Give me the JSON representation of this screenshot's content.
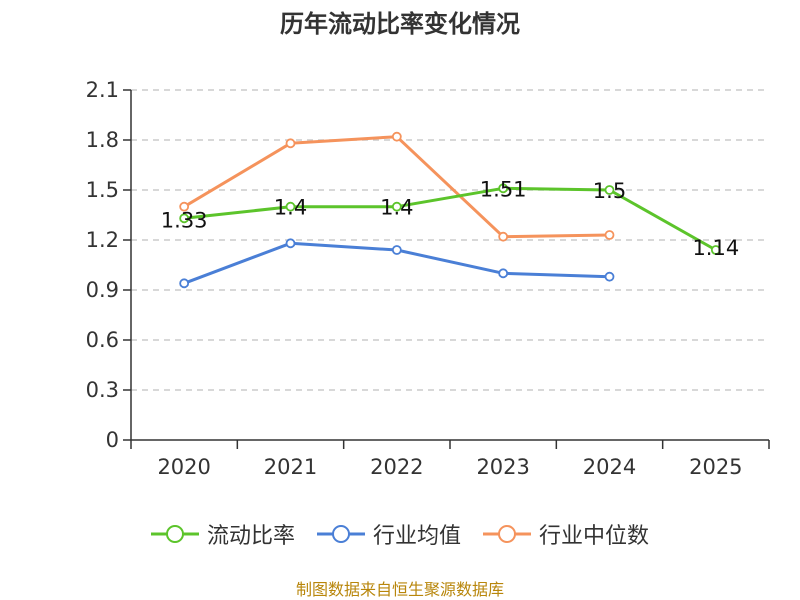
{
  "chart_data": {
    "type": "line",
    "title": "历年流动比率变化情况",
    "categories": [
      "2020",
      "2021",
      "2022",
      "2023",
      "2024",
      "2025"
    ],
    "ylim": [
      0,
      2.1
    ],
    "yticks": [
      "0",
      "0.3",
      "0.6",
      "0.9",
      "1.2",
      "1.5",
      "1.8",
      "2.1"
    ],
    "grid": true,
    "legend_position": "bottom",
    "series": [
      {
        "name": "流动比率",
        "color": "#5cc42b",
        "values": [
          1.33,
          1.4,
          1.4,
          1.51,
          1.5,
          1.14
        ],
        "labels": [
          "1.33",
          "1.4",
          "1.4",
          "1.51",
          "1.5",
          "1.14"
        ]
      },
      {
        "name": "行业均值",
        "color": "#4a7fd6",
        "values": [
          0.94,
          1.18,
          1.14,
          1.0,
          0.98,
          null
        ]
      },
      {
        "name": "行业中位数",
        "color": "#f5935c",
        "values": [
          1.4,
          1.78,
          1.82,
          1.22,
          1.23,
          null
        ]
      }
    ]
  },
  "footer": {
    "source": "制图数据来自恒生聚源数据库"
  }
}
